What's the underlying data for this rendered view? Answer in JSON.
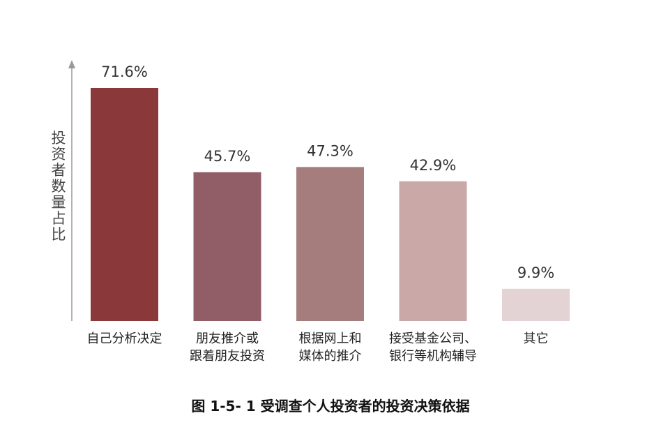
{
  "caption": "图 1-5- 1  受调查个人投资者的投资决策依据",
  "chart_data": {
    "type": "bar",
    "ylabel": "投资者数量占比",
    "xlabel": "",
    "unit": "%",
    "grid": false,
    "ylim": [
      0,
      80
    ],
    "categories": [
      [
        "自己分析决定"
      ],
      [
        "朋友推介或",
        "跟着朋友投资"
      ],
      [
        "根据网上和",
        "媒体的推介"
      ],
      [
        "接受基金公司、",
        "银行等机构辅导"
      ],
      [
        "其它"
      ]
    ],
    "values": [
      71.6,
      45.7,
      47.3,
      42.9,
      9.9
    ],
    "value_labels": [
      "71.6%",
      "45.7%",
      "47.3%",
      "42.9%",
      "9.9%"
    ],
    "colors": [
      "#8b383b",
      "#915e67",
      "#a57d7c",
      "#c9a8a7",
      "#e3d3d4"
    ],
    "axis_color": "#999999"
  }
}
